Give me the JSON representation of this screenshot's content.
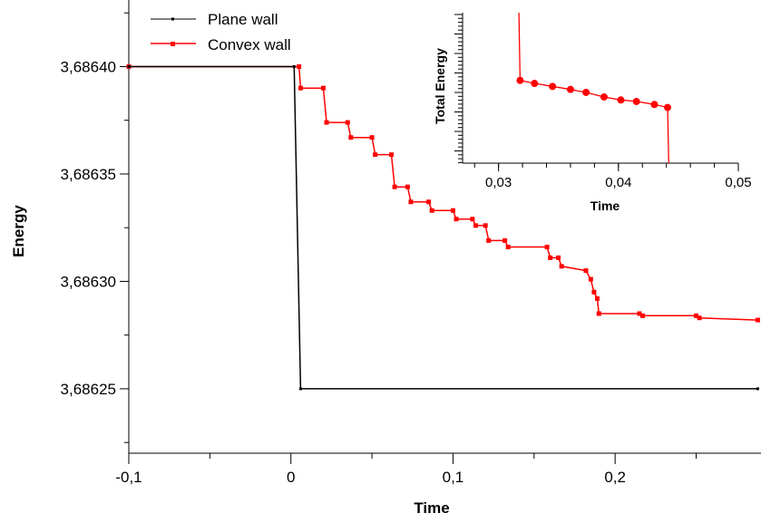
{
  "chart_data": [
    {
      "type": "line",
      "xlabel": "Time",
      "ylabel": "Energy",
      "xlim": [
        -0.1,
        0.29
      ],
      "ylim": [
        3.68622,
        3.686431
      ],
      "x_ticks": [
        -0.1,
        0,
        0.1,
        0.2
      ],
      "x_tick_labels": [
        "-0,1",
        "0",
        "0,1",
        "0,2"
      ],
      "y_ticks": [
        3.68625,
        3.6863,
        3.68635,
        3.6864
      ],
      "y_tick_labels": [
        "3,68625",
        "3,68630",
        "3,68635",
        "3,68640"
      ],
      "legend_position": "top-left",
      "series": [
        {
          "name": "Plane wall",
          "color": "#000000",
          "points": [
            [
              -0.1,
              3.6864
            ],
            [
              0.002,
              3.6864
            ],
            [
              0.006,
              3.68625
            ],
            [
              0.288,
              3.68625
            ]
          ]
        },
        {
          "name": "Convex wall",
          "color": "#ff0000",
          "points": [
            [
              -0.1,
              3.6864
            ],
            [
              0.005,
              3.6864
            ],
            [
              0.006,
              3.68639
            ],
            [
              0.02,
              3.68639
            ],
            [
              0.022,
              3.686374
            ],
            [
              0.035,
              3.686374
            ],
            [
              0.037,
              3.686367
            ],
            [
              0.05,
              3.686367
            ],
            [
              0.052,
              3.686359
            ],
            [
              0.062,
              3.686359
            ],
            [
              0.064,
              3.686344
            ],
            [
              0.072,
              3.686344
            ],
            [
              0.074,
              3.686337
            ],
            [
              0.085,
              3.686337
            ],
            [
              0.087,
              3.686333
            ],
            [
              0.1,
              3.686333
            ],
            [
              0.102,
              3.686329
            ],
            [
              0.112,
              3.686329
            ],
            [
              0.114,
              3.686326
            ],
            [
              0.12,
              3.686326
            ],
            [
              0.122,
              3.686319
            ],
            [
              0.132,
              3.686319
            ],
            [
              0.134,
              3.686316
            ],
            [
              0.158,
              3.686316
            ],
            [
              0.16,
              3.686311
            ],
            [
              0.165,
              3.686311
            ],
            [
              0.167,
              3.686307
            ],
            [
              0.182,
              3.686305
            ],
            [
              0.185,
              3.686301
            ],
            [
              0.187,
              3.686295
            ],
            [
              0.189,
              3.686292
            ],
            [
              0.19,
              3.686285
            ],
            [
              0.215,
              3.686285
            ],
            [
              0.217,
              3.686284
            ],
            [
              0.25,
              3.686284
            ],
            [
              0.252,
              3.686283
            ],
            [
              0.288,
              3.686282
            ]
          ]
        }
      ]
    },
    {
      "type": "line",
      "xlabel": "Time",
      "ylabel": "Total Energy",
      "xlim": [
        0.027,
        0.05
      ],
      "ylim": [
        0,
        100
      ],
      "x_ticks": [
        0.03,
        0.04,
        0.05
      ],
      "x_tick_labels": [
        "0,03",
        "0,04",
        "0,05"
      ],
      "series": [
        {
          "name": "",
          "color": "#ff0000",
          "points": [
            [
              0.0317,
              100
            ],
            [
              0.0318,
              55
            ],
            [
              0.033,
              53
            ],
            [
              0.0345,
              51
            ],
            [
              0.036,
              49
            ],
            [
              0.0373,
              47
            ],
            [
              0.0388,
              44
            ],
            [
              0.0402,
              42
            ],
            [
              0.0415,
              41
            ],
            [
              0.043,
              39
            ],
            [
              0.0441,
              37
            ],
            [
              0.0442,
              0
            ]
          ]
        }
      ]
    }
  ]
}
